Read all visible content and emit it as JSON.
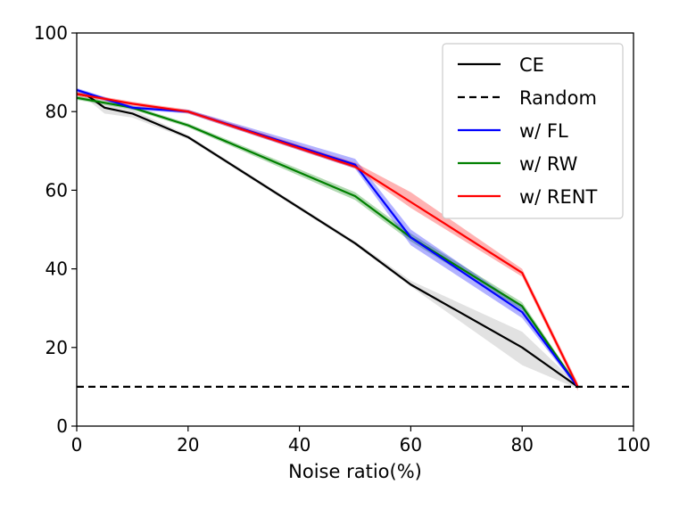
{
  "chart_data": {
    "type": "line",
    "title": "",
    "xlabel": "Noise ratio(%)",
    "ylabel": "",
    "xlim": [
      0,
      100
    ],
    "ylim": [
      0,
      100
    ],
    "xticks": [
      "0",
      "20",
      "40",
      "60",
      "80",
      "100"
    ],
    "yticks": [
      "0",
      "20",
      "40",
      "60",
      "80",
      "100"
    ],
    "grid": false,
    "legend_position": "top-right",
    "series": [
      {
        "name": "CE",
        "color": "#000000",
        "style": "solid",
        "x": [
          0,
          2,
          5,
          10,
          20,
          50,
          60,
          80,
          90
        ],
        "y": [
          84.5,
          84,
          81,
          79.5,
          73.5,
          46.5,
          36,
          20,
          10
        ],
        "band_lo": [
          84,
          83,
          79.5,
          78.5,
          73,
          46,
          35.5,
          15.5,
          9.5
        ],
        "band_hi": [
          85,
          85,
          82,
          80.5,
          74,
          47,
          37,
          24,
          10.5
        ]
      },
      {
        "name": "Random",
        "color": "#000000",
        "style": "dashed",
        "x": [
          0,
          100
        ],
        "y": [
          10,
          10
        ]
      },
      {
        "name": "w/ FL",
        "color": "#0000ff",
        "style": "solid",
        "x": [
          0,
          10,
          20,
          50,
          60,
          80,
          90
        ],
        "y": [
          85.5,
          81,
          80,
          66.5,
          48,
          29,
          10
        ],
        "band_lo": [
          85,
          80.5,
          79.5,
          65.5,
          46,
          27.5,
          9.5
        ],
        "band_hi": [
          86,
          81.5,
          80.5,
          68,
          50,
          30.5,
          10.5
        ]
      },
      {
        "name": "w/ RW",
        "color": "#008000",
        "style": "solid",
        "x": [
          0,
          10,
          20,
          50,
          60,
          80,
          90
        ],
        "y": [
          83.5,
          81,
          76.5,
          58.5,
          48,
          30.5,
          10
        ],
        "band_lo": [
          83,
          80.5,
          76,
          57.5,
          47,
          29.5,
          9.5
        ],
        "band_hi": [
          84,
          81.5,
          77,
          59.5,
          49,
          31.5,
          10.5
        ]
      },
      {
        "name": "w/ RENT",
        "color": "#ff0000",
        "style": "solid",
        "x": [
          0,
          10,
          20,
          50,
          60,
          80,
          90
        ],
        "y": [
          84.5,
          82,
          80,
          66,
          57,
          39,
          10
        ],
        "band_lo": [
          84,
          81.5,
          79.5,
          65.5,
          55.5,
          38,
          9
        ],
        "band_hi": [
          85,
          82.5,
          80.5,
          67,
          59.5,
          40,
          11
        ]
      }
    ]
  }
}
